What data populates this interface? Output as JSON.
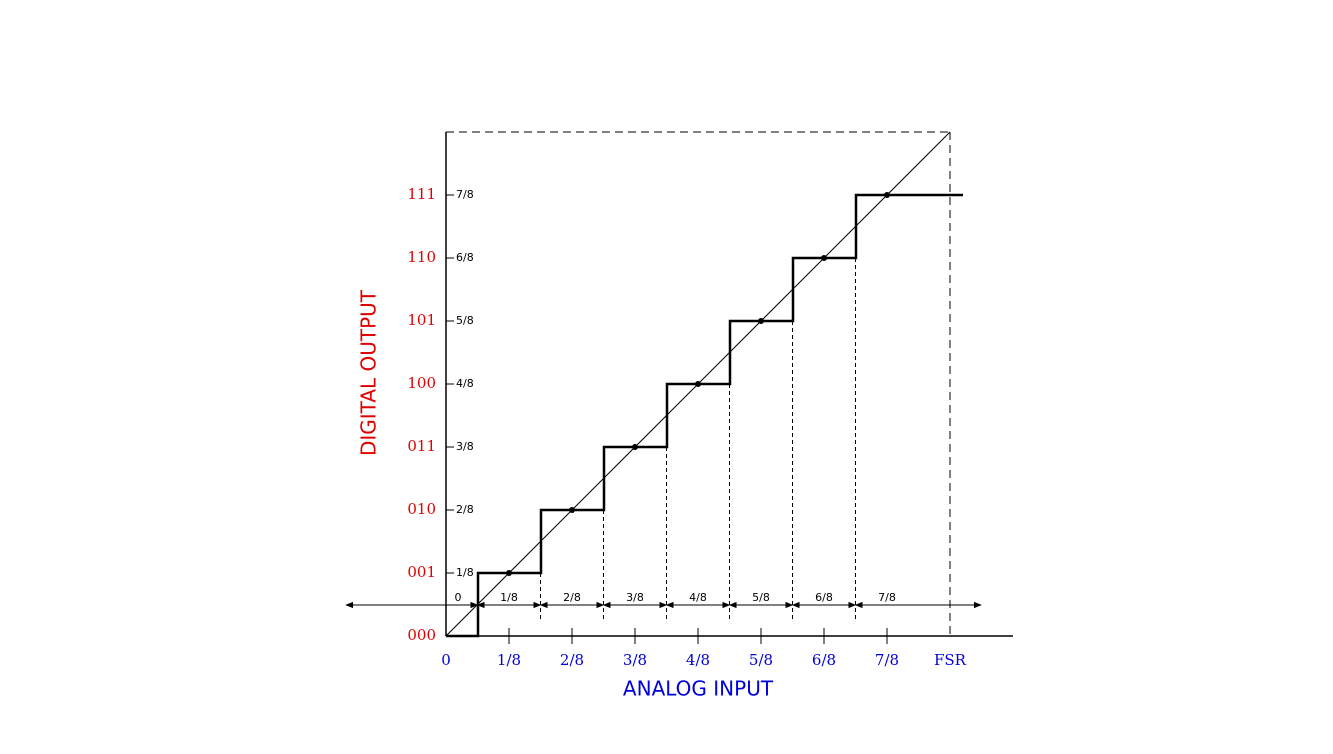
{
  "diagram": {
    "y_axis_title": "DIGITAL OUTPUT",
    "x_axis_title": "ANALOG INPUT",
    "output_codes": [
      "000",
      "001",
      "010",
      "011",
      "100",
      "101",
      "110",
      "111"
    ],
    "output_levels": [
      "1/8",
      "2/8",
      "3/8",
      "4/8",
      "5/8",
      "6/8",
      "7/8"
    ],
    "input_ticks": [
      "0",
      "1/8",
      "2/8",
      "3/8",
      "4/8",
      "5/8",
      "6/8",
      "7/8",
      "FSR"
    ],
    "input_ranges": [
      "0",
      "1/8",
      "2/8",
      "3/8",
      "4/8",
      "5/8",
      "6/8",
      "7/8"
    ]
  }
}
